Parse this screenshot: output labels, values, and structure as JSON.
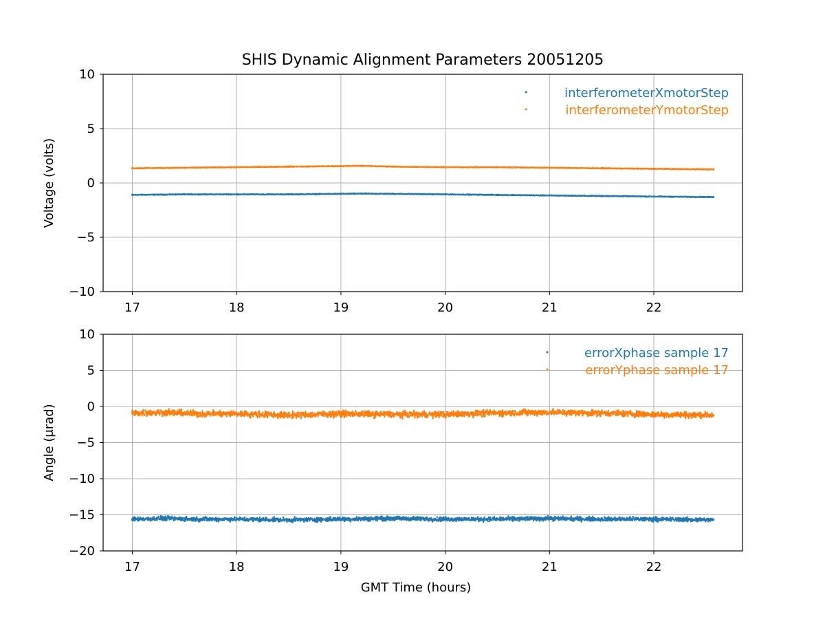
{
  "figure": {
    "title": "SHIS Dynamic Alignment Parameters 20051205"
  },
  "colors": {
    "blue": "#1f77b4",
    "orange": "#ff7f0e",
    "grid": "#b0b0b0"
  },
  "chart_data": [
    {
      "type": "scatter",
      "ylabel": "Voltage (volts)",
      "xlabel": "",
      "xlim": [
        16.72,
        22.85
      ],
      "ylim": [
        -10,
        10
      ],
      "xticks": [
        17,
        18,
        19,
        20,
        21,
        22
      ],
      "yticks": [
        10,
        5,
        0,
        -5,
        -10
      ],
      "ytick_labels": [
        "10",
        "5",
        "0",
        "−5",
        "−10"
      ],
      "xtick_labels": [
        "17",
        "18",
        "19",
        "20",
        "21",
        "22"
      ],
      "grid": true,
      "legend": "top-right",
      "series": [
        {
          "name": "interferometerXmotorStep",
          "color": "#1f77b4",
          "x": [
            17.0,
            17.5,
            18.0,
            18.5,
            19.0,
            19.2,
            19.5,
            20.0,
            20.5,
            21.0,
            21.5,
            22.0,
            22.57
          ],
          "y": [
            -1.1,
            -1.05,
            -1.05,
            -1.05,
            -1.0,
            -0.98,
            -1.0,
            -1.05,
            -1.1,
            -1.15,
            -1.2,
            -1.25,
            -1.3
          ],
          "spread": 0.12
        },
        {
          "name": "interferometerYmotorStep",
          "color": "#ff7f0e",
          "x": [
            17.0,
            17.5,
            18.0,
            18.5,
            19.0,
            19.2,
            19.5,
            20.0,
            20.5,
            21.0,
            21.5,
            22.0,
            22.57
          ],
          "y": [
            1.35,
            1.4,
            1.45,
            1.5,
            1.55,
            1.58,
            1.5,
            1.45,
            1.45,
            1.4,
            1.35,
            1.3,
            1.25
          ],
          "spread": 0.12
        }
      ]
    },
    {
      "type": "scatter",
      "ylabel": "Angle (μrad)",
      "xlabel": "GMT Time (hours)",
      "xlim": [
        16.72,
        22.85
      ],
      "ylim": [
        -20,
        10
      ],
      "xticks": [
        17,
        18,
        19,
        20,
        21,
        22
      ],
      "yticks": [
        10,
        5,
        0,
        -5,
        -10,
        -15,
        -20
      ],
      "ytick_labels": [
        "10",
        "5",
        "0",
        "−5",
        "−10",
        "−15",
        "−20"
      ],
      "xtick_labels": [
        "17",
        "18",
        "19",
        "20",
        "21",
        "22"
      ],
      "grid": true,
      "legend": "top-right",
      "series": [
        {
          "name": "errorXphase sample 17",
          "color": "#1f77b4",
          "x": [
            17.0,
            17.3,
            17.6,
            18.0,
            18.5,
            19.0,
            19.5,
            20.0,
            20.5,
            21.0,
            21.5,
            22.0,
            22.57
          ],
          "y": [
            -15.6,
            -15.5,
            -15.6,
            -15.6,
            -15.7,
            -15.6,
            -15.5,
            -15.6,
            -15.6,
            -15.5,
            -15.6,
            -15.6,
            -15.7
          ],
          "spread": 0.9
        },
        {
          "name": "errorYphase sample 17",
          "color": "#ff7f0e",
          "x": [
            17.0,
            17.3,
            17.6,
            18.0,
            18.5,
            19.0,
            19.5,
            20.0,
            20.5,
            21.0,
            21.5,
            22.0,
            22.57
          ],
          "y": [
            -0.9,
            -0.8,
            -1.0,
            -1.0,
            -1.2,
            -1.0,
            -1.1,
            -1.1,
            -0.9,
            -0.8,
            -0.9,
            -1.1,
            -1.2
          ],
          "spread": 1.3
        }
      ]
    }
  ]
}
